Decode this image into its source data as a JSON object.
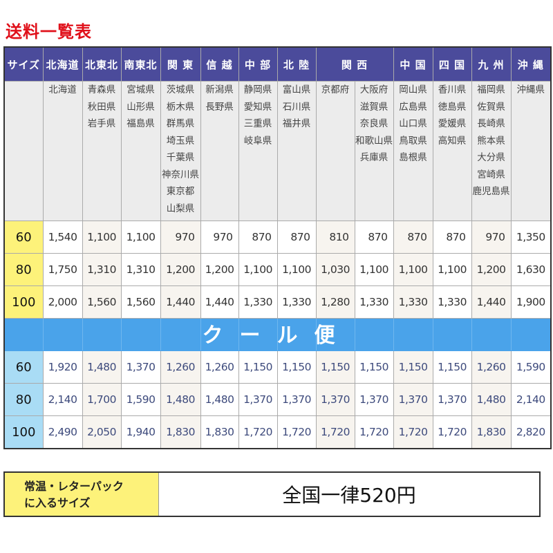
{
  "title": "送料一覧表",
  "header": {
    "size_label": "サイズ",
    "regions": [
      "北海道",
      "北東北",
      "南東北",
      "関 東",
      "信 越",
      "中 部",
      "北 陸",
      "関 西",
      "中 国",
      "四 国",
      "九 州",
      "沖 縄"
    ]
  },
  "prefectures": [
    [
      "北海道"
    ],
    [
      "青森県",
      "秋田県",
      "岩手県"
    ],
    [
      "宮城県",
      "山形県",
      "福島県"
    ],
    [
      "茨城県",
      "栃木県",
      "群馬県",
      "埼玉県",
      "千葉県",
      "神奈川県",
      "東京都",
      "山梨県"
    ],
    [
      "新潟県",
      "長野県"
    ],
    [
      "静岡県",
      "愛知県",
      "三重県",
      "岐阜県"
    ],
    [
      "富山県",
      "石川県",
      "福井県"
    ],
    [
      "京都府"
    ],
    [
      "大阪府",
      "滋賀県",
      "奈良県",
      "和歌山県",
      "兵庫県"
    ],
    [
      "岡山県",
      "広島県",
      "山口県",
      "鳥取県",
      "島根県"
    ],
    [
      "香川県",
      "徳島県",
      "愛媛県",
      "高知県"
    ],
    [
      "福岡県",
      "佐賀県",
      "長崎県",
      "熊本県",
      "大分県",
      "宮崎県",
      "鹿児島県"
    ],
    [
      "沖縄県"
    ]
  ],
  "normal_rates": [
    {
      "size": "60",
      "values": [
        "1,540",
        "1,100",
        "1,100",
        "970",
        "970",
        "870",
        "870",
        "810",
        "870",
        "870",
        "870",
        "970",
        "1,350"
      ]
    },
    {
      "size": "80",
      "values": [
        "1,750",
        "1,310",
        "1,310",
        "1,200",
        "1,200",
        "1,100",
        "1,100",
        "1,030",
        "1,100",
        "1,100",
        "1,100",
        "1,200",
        "1,630"
      ]
    },
    {
      "size": "100",
      "values": [
        "2,000",
        "1,560",
        "1,560",
        "1,440",
        "1,440",
        "1,330",
        "1,330",
        "1,280",
        "1,330",
        "1,330",
        "1,330",
        "1,440",
        "1,900"
      ]
    }
  ],
  "cool_label": "クール便",
  "cool_rates": [
    {
      "size": "60",
      "values": [
        "1,920",
        "1,480",
        "1,370",
        "1,260",
        "1,260",
        "1,150",
        "1,150",
        "1,150",
        "1,150",
        "1,150",
        "1,150",
        "1,260",
        "1,590"
      ]
    },
    {
      "size": "80",
      "values": [
        "2,140",
        "1,700",
        "1,590",
        "1,480",
        "1,480",
        "1,370",
        "1,370",
        "1,370",
        "1,370",
        "1,370",
        "1,370",
        "1,480",
        "2,140"
      ]
    },
    {
      "size": "100",
      "values": [
        "2,490",
        "2,050",
        "1,940",
        "1,830",
        "1,830",
        "1,720",
        "1,720",
        "1,720",
        "1,720",
        "1,720",
        "1,720",
        "1,830",
        "2,820"
      ]
    }
  ],
  "flat_rate": {
    "label_line1": "常温・レターパック",
    "label_line2": "に入るサイズ",
    "value": "全国一律520円"
  },
  "colors": {
    "header": "#4b4b9b",
    "normal_size": "#fdf27a",
    "cool_band": "#4aa3ea",
    "cool_size": "#a9dcf5",
    "title": "#e0101a"
  }
}
